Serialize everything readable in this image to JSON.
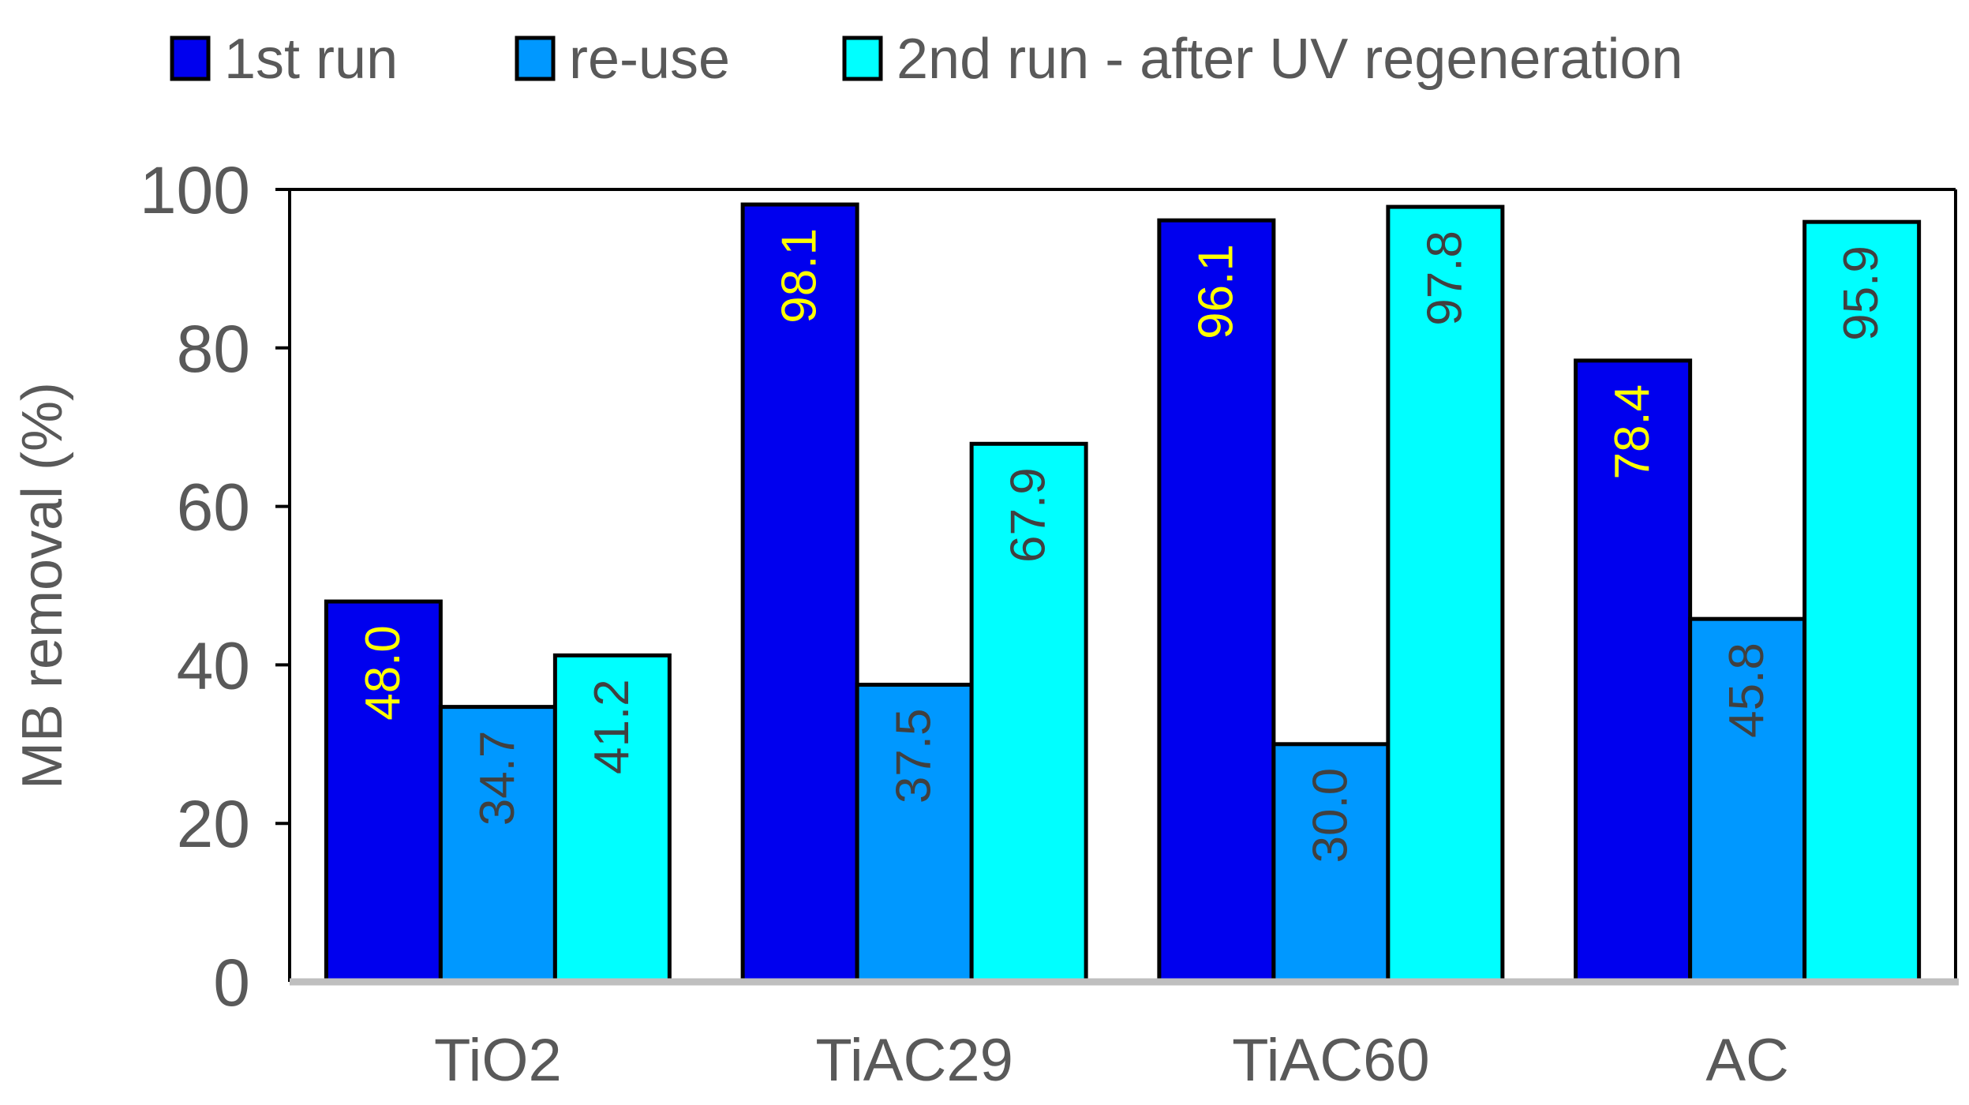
{
  "chart_data": {
    "type": "bar",
    "title": "",
    "xlabel": "",
    "ylabel": "MB removal (%)",
    "ylim": [
      0,
      100
    ],
    "yticks": [
      0,
      20,
      40,
      60,
      80,
      100
    ],
    "grid": false,
    "legend_position": "top",
    "categories": [
      "TiO2",
      "TiAC29",
      "TiAC60",
      "AC"
    ],
    "series": [
      {
        "name": "1st run",
        "values": [
          48.0,
          98.1,
          96.1,
          78.4
        ],
        "labels": [
          "48.0",
          "98.1",
          "96.1",
          "78.4"
        ],
        "color": "#0000EE",
        "label_color": "#FFFF00"
      },
      {
        "name": "re-use",
        "values": [
          34.7,
          37.5,
          30.0,
          45.8
        ],
        "labels": [
          "34.7",
          "37.5",
          "30.0",
          "45.8"
        ],
        "color": "#0098FF",
        "label_color": "#404040"
      },
      {
        "name": "2nd run - after UV regeneration",
        "values": [
          41.2,
          67.9,
          97.8,
          95.9
        ],
        "labels": [
          "41.2",
          "67.9",
          "97.8",
          "95.9"
        ],
        "color": "#00FFFF",
        "label_color": "#404040"
      }
    ],
    "colors": {
      "text": "#595959",
      "bar_outline": "#000000",
      "axis_baseline": "#BFBFBF"
    }
  }
}
